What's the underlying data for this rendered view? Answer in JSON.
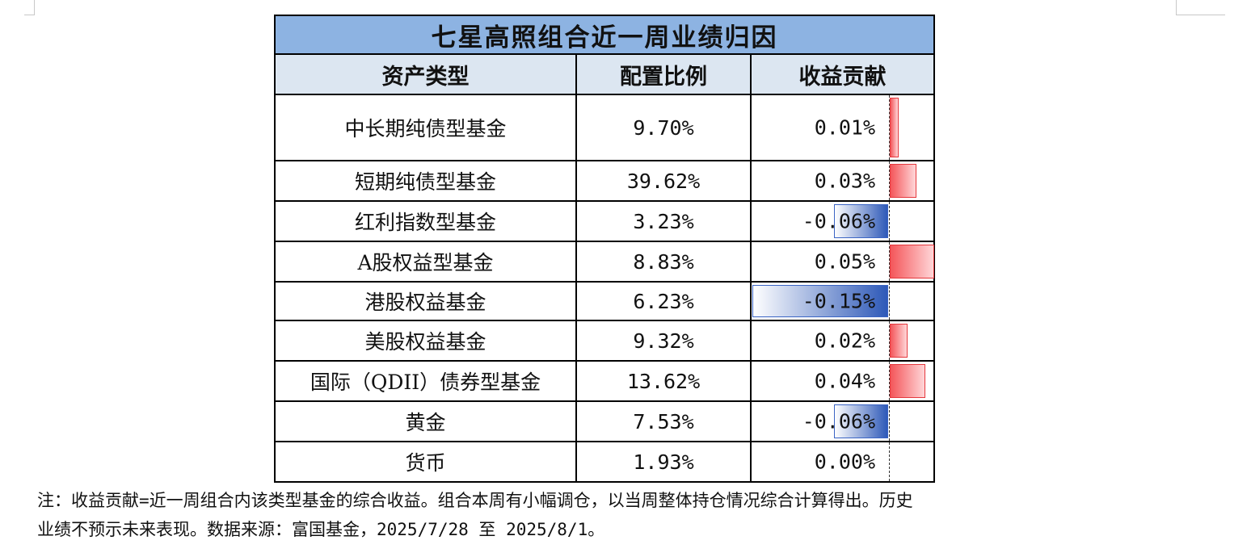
{
  "table": {
    "title": "七星高照组合近一周业绩归因",
    "headers": [
      "资产类型",
      "配置比例",
      "收益贡献"
    ],
    "rows": [
      {
        "name": "中长期纯债型基金",
        "allocation": "9.70%",
        "contribution": "0.01%",
        "contribution_value": 0.01
      },
      {
        "name": "短期纯债型基金",
        "allocation": "39.62%",
        "contribution": "0.03%",
        "contribution_value": 0.03
      },
      {
        "name": "红利指数型基金",
        "allocation": "3.23%",
        "contribution": "-0.06%",
        "contribution_value": -0.06
      },
      {
        "name": "A股权益型基金",
        "allocation": "8.83%",
        "contribution": "0.05%",
        "contribution_value": 0.05
      },
      {
        "name": "港股权益基金",
        "allocation": "6.23%",
        "contribution": "-0.15%",
        "contribution_value": -0.15
      },
      {
        "name": "美股权益基金",
        "allocation": "9.32%",
        "contribution": "0.02%",
        "contribution_value": 0.02
      },
      {
        "name": "国际（QDII）债券型基金",
        "allocation": "13.62%",
        "contribution": "0.04%",
        "contribution_value": 0.04
      },
      {
        "name": "黄金",
        "allocation": "7.53%",
        "contribution": "-0.06%",
        "contribution_value": -0.06
      },
      {
        "name": "货币",
        "allocation": "1.93%",
        "contribution": "0.00%",
        "contribution_value": 0.0
      }
    ]
  },
  "note": {
    "line1": "注：收益贡献=近一周组合内该类型基金的综合收益。组合本周有小幅调仓，以当周整体持仓情况综合计算得出。历史",
    "line2": "业绩不预示未来表现。数据来源：富国基金，2025/7/28 至 2025/8/1。"
  },
  "colors": {
    "title_bg": "#8db3e2",
    "header_bg": "#dce6f1",
    "positive_bar": "#f4565a",
    "negative_bar": "#2e59b8"
  }
}
